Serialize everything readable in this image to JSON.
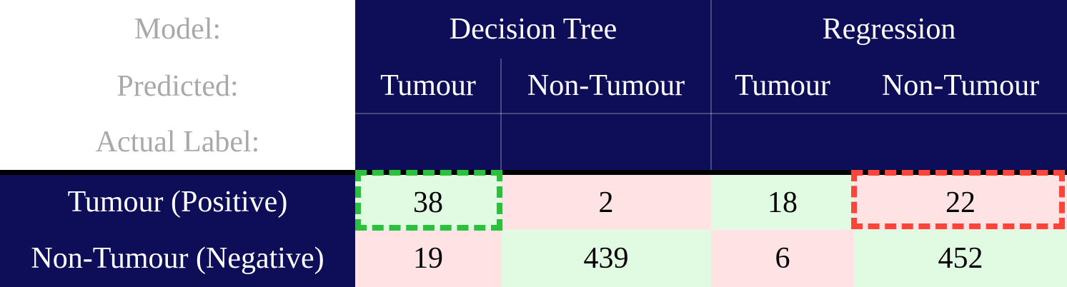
{
  "chart_data": {
    "type": "table",
    "corner_labels": {
      "model": "Model:",
      "predicted": "Predicted:",
      "actual": "Actual Label:"
    },
    "column_groups": [
      {
        "model": "Decision Tree",
        "columns": [
          "Tumour",
          "Non-Tumour"
        ]
      },
      {
        "model": "Regression",
        "columns": [
          "Tumour",
          "Non-Tumour"
        ]
      }
    ],
    "row_labels": [
      "Tumour (Positive)",
      "Non-Tumour (Negative)"
    ],
    "values": [
      [
        38,
        2,
        18,
        22
      ],
      [
        19,
        439,
        6,
        452
      ]
    ],
    "cell_shading": [
      [
        "green",
        "pink",
        "green",
        "pink"
      ],
      [
        "pink",
        "green",
        "pink",
        "green"
      ]
    ],
    "annotations": [
      {
        "shape": "green-dashed-box",
        "model": "Decision Tree",
        "predicted": "Tumour",
        "actual": "Tumour (Positive)",
        "value": 38
      },
      {
        "shape": "red-dashed-box",
        "model": "Regression",
        "predicted": "Non-Tumour",
        "actual": "Tumour (Positive)",
        "value": 22
      }
    ]
  },
  "colors": {
    "navy": "#0d0d58",
    "cell_green": "#e1fbe2",
    "cell_pink": "#ffe2e4",
    "highlight_green": "#2cc13c",
    "highlight_red": "#fa453a",
    "corner_text": "#a9a9a9",
    "header_text": "#ffffff",
    "cell_text": "#000000",
    "separator": "#000000",
    "grid_line": "rgba(255,255,255,0.25)"
  }
}
